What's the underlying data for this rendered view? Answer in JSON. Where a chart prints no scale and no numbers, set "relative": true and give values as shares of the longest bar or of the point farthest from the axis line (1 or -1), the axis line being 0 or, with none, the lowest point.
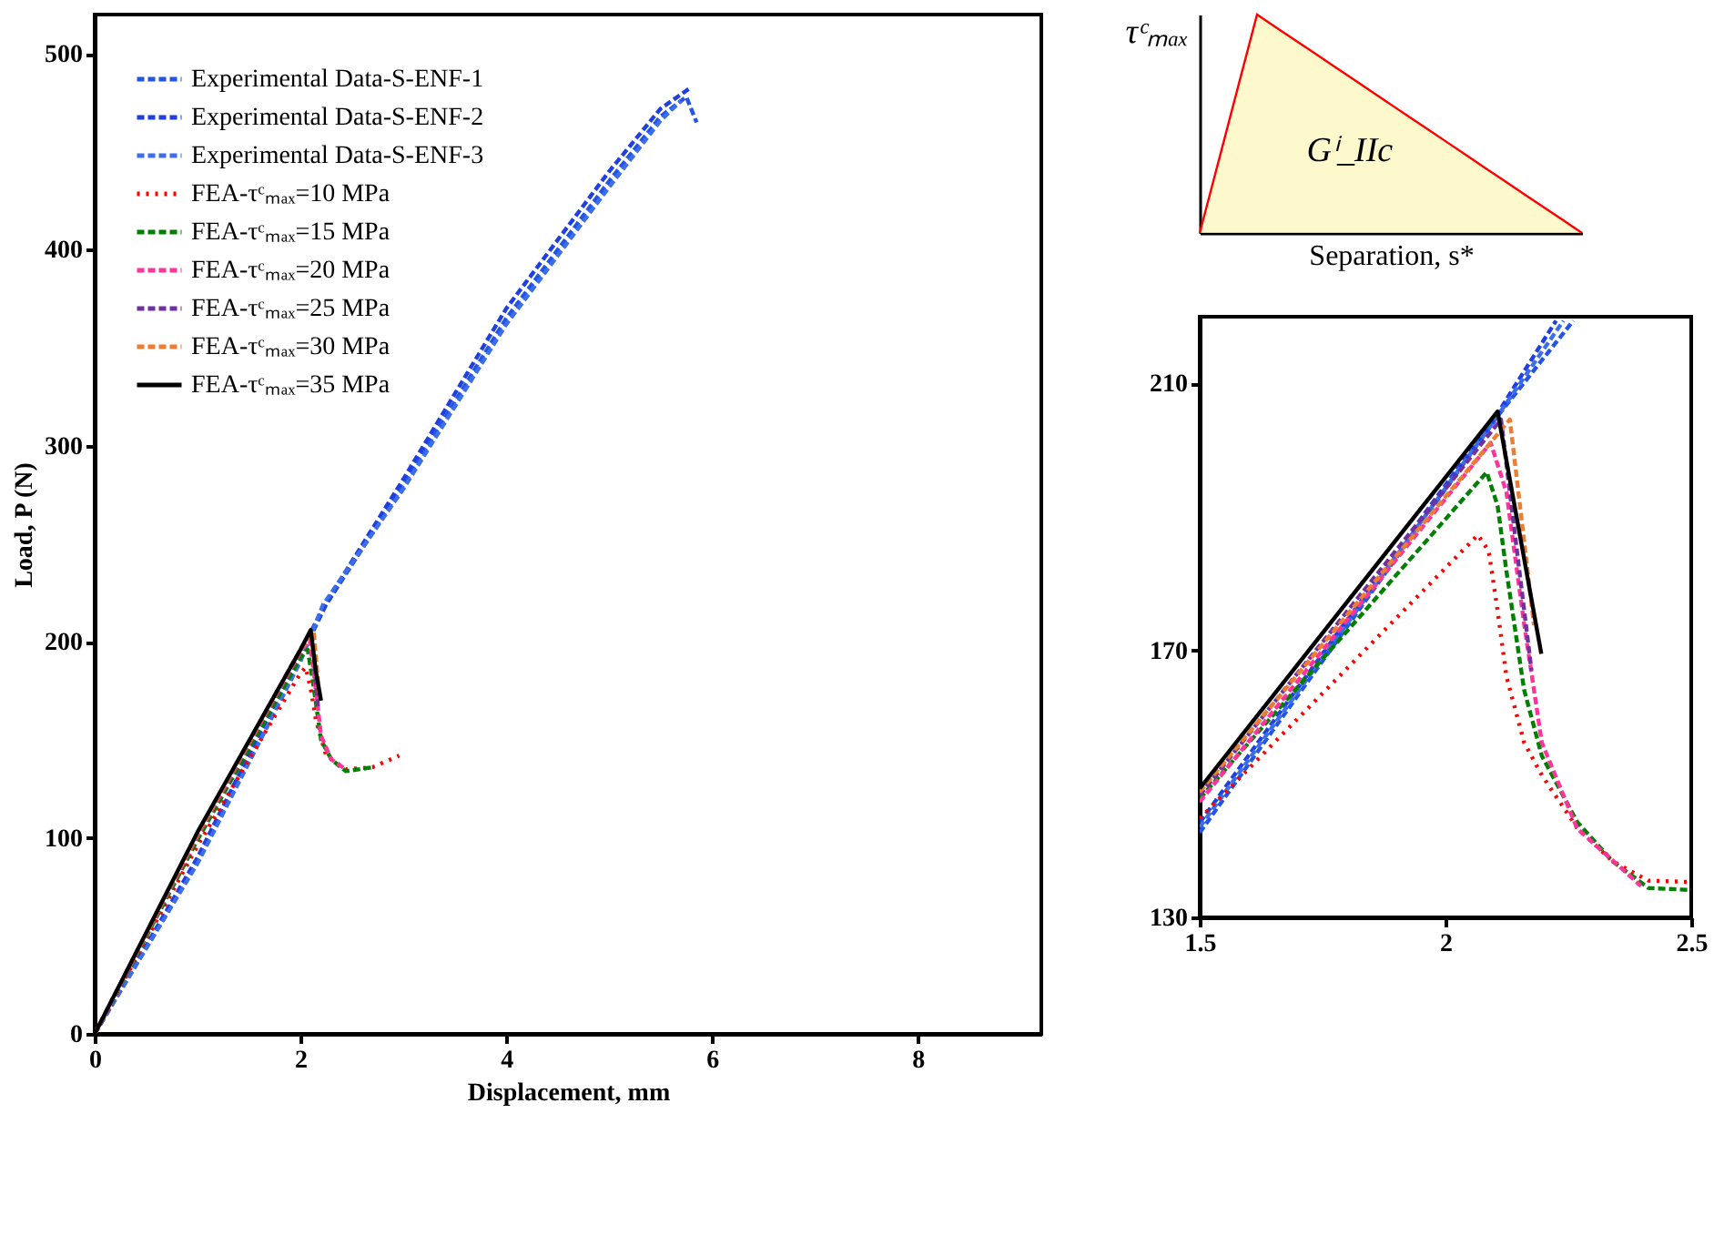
{
  "chart_data": [
    {
      "type": "line",
      "xlabel": "Displacement, mm",
      "ylabel": "Load, P (N)",
      "xlim": [
        0,
        9.2
      ],
      "xticks": [
        0,
        2,
        4,
        6,
        8
      ],
      "ylim": [
        0,
        520
      ],
      "yticks": [
        0,
        100,
        200,
        300,
        400,
        500
      ],
      "legend": "top left",
      "grid": false,
      "series": [
        {
          "name": "Experimental Data-S-ENF-1",
          "color": "#2255e6",
          "line_style": "dashed",
          "x": [
            0,
            1,
            2,
            2.25,
            3,
            4,
            5,
            5.5,
            5.75,
            5.85
          ],
          "values": [
            0,
            88,
            192,
            219,
            280,
            365,
            435,
            468,
            478,
            465
          ]
        },
        {
          "name": "Experimental Data-S-ENF-2",
          "color": "#1f3fe0",
          "line_style": "dashed",
          "x": [
            0,
            1,
            2,
            2.25,
            3,
            4,
            5,
            5.5,
            5.8
          ],
          "values": [
            0,
            90,
            195,
            220,
            283,
            370,
            440,
            472,
            483
          ]
        },
        {
          "name": "Experimental Data-S-ENF-3",
          "color": "#3b6ee8",
          "line_style": "dashed",
          "x": [
            0,
            1,
            2,
            2.22,
            3,
            4,
            5,
            5.5,
            5.7
          ],
          "values": [
            0,
            87,
            190,
            219,
            278,
            362,
            432,
            466,
            476
          ]
        },
        {
          "name": "FEA-τᶜₘₐₓ=10 MPa",
          "color": "#ff0000",
          "line_style": "dotted",
          "x": [
            0,
            1,
            2,
            2.05,
            2.1,
            2.15,
            2.25,
            2.44,
            2.7,
            2.96
          ],
          "values": [
            0,
            96,
            184,
            187,
            176,
            160,
            142,
            135,
            136,
            142
          ]
        },
        {
          "name": "FEA-τᶜₘₐₓ=15 MPa",
          "color": "#008000",
          "line_style": "dashed",
          "x": [
            0,
            1,
            2,
            2.07,
            2.12,
            2.2,
            2.3,
            2.44,
            2.7
          ],
          "values": [
            0,
            99,
            192,
            196,
            180,
            150,
            140,
            134,
            136
          ]
        },
        {
          "name": "FEA-τᶜₘₐₓ=20 MPa",
          "color": "#ff3399",
          "line_style": "dashed",
          "x": [
            0,
            1,
            2,
            2.09,
            2.14,
            2.2,
            2.3,
            2.44
          ],
          "values": [
            0,
            101,
            195,
            201,
            180,
            152,
            140,
            135
          ]
        },
        {
          "name": "FEA-τᶜₘₐₓ=25 MPa",
          "color": "#7030a0",
          "line_style": "dashed",
          "x": [
            0,
            1,
            2,
            2.11,
            2.17
          ],
          "values": [
            0,
            102,
            196,
            205,
            167
          ]
        },
        {
          "name": "FEA-τᶜₘₐₓ=30 MPa",
          "color": "#ed7d31",
          "line_style": "dashed",
          "x": [
            0,
            1,
            2,
            2.13,
            2.18
          ],
          "values": [
            0,
            102,
            196,
            205,
            174
          ]
        },
        {
          "name": "FEA-τᶜₘₐₓ=35 MPa",
          "color": "#000000",
          "line_style": "solid",
          "x": [
            0,
            1,
            2,
            2.1,
            2.15,
            2.2
          ],
          "values": [
            0,
            103,
            196,
            206,
            185,
            170
          ]
        }
      ]
    },
    {
      "type": "area",
      "relative": true,
      "xlabel": "Separation, s*",
      "tick_labels": false,
      "categories": [
        null,
        null,
        null,
        null,
        null,
        null,
        null,
        null,
        null,
        null,
        null,
        null,
        null,
        null,
        null,
        null,
        null,
        null,
        null,
        null,
        null
      ],
      "series": [
        {
          "color": "#fdf5b8",
          "values": [
            0,
            0.333,
            0.667,
            1,
            0.941,
            0.882,
            0.824,
            0.765,
            0.706,
            0.647,
            0.588,
            0.529,
            0.471,
            0.412,
            0.353,
            0.294,
            0.235,
            0.176,
            0.118,
            0.059,
            0
          ]
        }
      ],
      "annotations": [
        "τᶜₘₐₓ",
        "Gⁱ_IIc"
      ]
    },
    {
      "type": "line",
      "xlim": [
        1.5,
        2.5
      ],
      "xticks": [
        1.5,
        2,
        2.5
      ],
      "ylim": [
        130,
        220
      ],
      "yticks": [
        130,
        170,
        210
      ],
      "grid": false,
      "series": [
        {
          "color": "#2255e6",
          "line_style": "dashed",
          "x": [
            1.5,
            2.106,
            2.26
          ],
          "values": [
            142.7,
            205.1,
            219.4
          ]
        },
        {
          "color": "#1f3fe0",
          "line_style": "dashed",
          "x": [
            1.5,
            2.106,
            2.225
          ],
          "values": [
            144.2,
            205.5,
            219.4
          ]
        },
        {
          "color": "#3b6ee8",
          "line_style": "dashed",
          "x": [
            1.5,
            2.1,
            2.24
          ],
          "values": [
            143.5,
            204.5,
            219.4
          ]
        },
        {
          "color": "#ff0000",
          "line_style": "dotted",
          "x": [
            1.5,
            2.066,
            2.088,
            2.106,
            2.124,
            2.16,
            2.196,
            2.268,
            2.34,
            2.413,
            2.5
          ],
          "values": [
            144.8,
            187.3,
            184.9,
            176,
            166.1,
            156.2,
            151.3,
            143.4,
            138.4,
            135.5,
            135.3
          ]
        },
        {
          "color": "#008000",
          "line_style": "dashed",
          "x": [
            1.5,
            2.084,
            2.106,
            2.124,
            2.16,
            2.196,
            2.268,
            2.34,
            2.413,
            2.5
          ],
          "values": [
            147.8,
            196.7,
            191.7,
            181.9,
            164.1,
            154.2,
            144.3,
            138.4,
            134.4,
            134.1
          ]
        },
        {
          "color": "#ff3399",
          "line_style": "dashed",
          "x": [
            1.5,
            2.092,
            2.124,
            2.16,
            2.196,
            2.268,
            2.398
          ],
          "values": [
            147.3,
            201.1,
            193.7,
            174,
            156.2,
            143.3,
            134.7
          ]
        },
        {
          "color": "#7030a0",
          "line_style": "dashed",
          "x": [
            1.5,
            2.113,
            2.175
          ],
          "values": [
            148.3,
            204.6,
            167
          ]
        },
        {
          "color": "#ed7d31",
          "line_style": "dashed",
          "x": [
            1.5,
            2.131,
            2.18
          ],
          "values": [
            148.8,
            204.6,
            173.8
          ]
        },
        {
          "color": "#000000",
          "line_style": "solid",
          "x": [
            1.5,
            2.106,
            2.195
          ],
          "values": [
            149.3,
            205.8,
            169.5
          ]
        }
      ]
    }
  ]
}
